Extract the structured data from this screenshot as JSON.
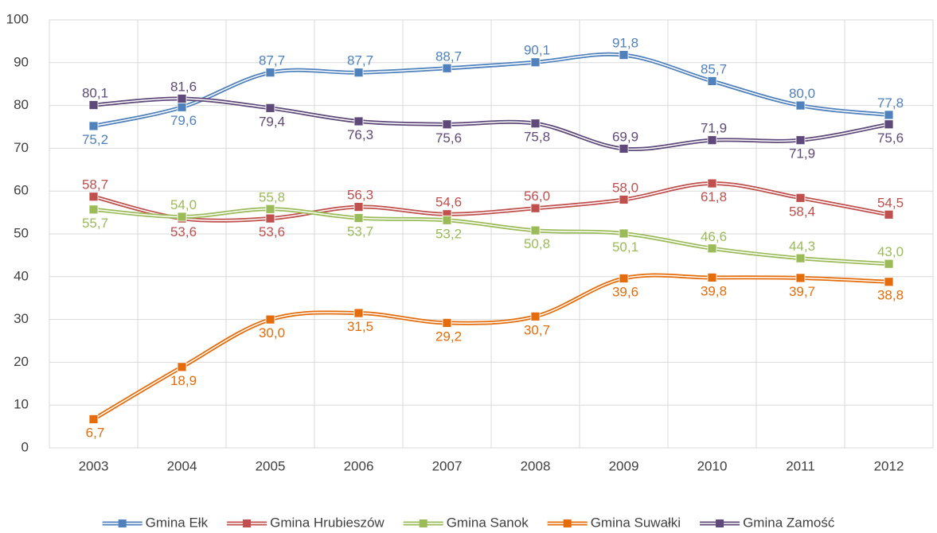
{
  "chart_data": {
    "type": "line",
    "categories": [
      "2003",
      "2004",
      "2005",
      "2006",
      "2007",
      "2008",
      "2009",
      "2010",
      "2011",
      "2012"
    ],
    "ylim": [
      0,
      100
    ],
    "yticks": [
      0,
      10,
      20,
      30,
      40,
      50,
      60,
      70,
      80,
      90,
      100
    ],
    "grid": true,
    "legend": "bottom",
    "series": [
      {
        "name": "Gmina Ełk",
        "color": "#4f81bd",
        "values": [
          75.2,
          79.6,
          87.7,
          87.7,
          88.7,
          90.1,
          91.8,
          85.7,
          80.0,
          77.8
        ],
        "value_labels": [
          "75,2",
          "79,6",
          "87,7",
          "87,7",
          "88,7",
          "90,1",
          "91,8",
          "85,7",
          "80,0",
          "77,8"
        ]
      },
      {
        "name": "Gmina Hrubieszów",
        "color": "#c0504d",
        "values": [
          58.7,
          53.6,
          53.6,
          56.3,
          54.6,
          56.0,
          58.0,
          61.8,
          58.4,
          54.5
        ],
        "value_labels": [
          "58,7",
          "53,6",
          "53,6",
          "56,3",
          "54,6",
          "56,0",
          "58,0",
          "61,8",
          "58,4",
          "54,5"
        ]
      },
      {
        "name": "Gmina Sanok",
        "color": "#9bbb59",
        "values": [
          55.7,
          54.0,
          55.8,
          53.7,
          53.2,
          50.8,
          50.1,
          46.6,
          44.3,
          43.0
        ],
        "value_labels": [
          "55,7",
          "54,0",
          "55,8",
          "53,7",
          "53,2",
          "50,8",
          "50,1",
          "46,6",
          "44,3",
          "43,0"
        ]
      },
      {
        "name": "Gmina Suwałki",
        "color": "#e46c0a",
        "values": [
          6.7,
          18.9,
          30.0,
          31.5,
          29.2,
          30.7,
          39.6,
          39.8,
          39.7,
          38.8
        ],
        "value_labels": [
          "6,7",
          "18,9",
          "30,0",
          "31,5",
          "29,2",
          "30,7",
          "39,6",
          "39,8",
          "39,7",
          "38,8"
        ]
      },
      {
        "name": "Gmina Zamość",
        "color": "#5f497a",
        "values": [
          80.1,
          81.6,
          79.4,
          76.3,
          75.6,
          75.8,
          69.9,
          71.9,
          71.9,
          75.6
        ],
        "value_labels": [
          "80,1",
          "81,6",
          "79,4",
          "76,3",
          "75,6",
          "75,8",
          "69,9",
          "71,9",
          "71,9",
          "75,6"
        ]
      }
    ]
  }
}
